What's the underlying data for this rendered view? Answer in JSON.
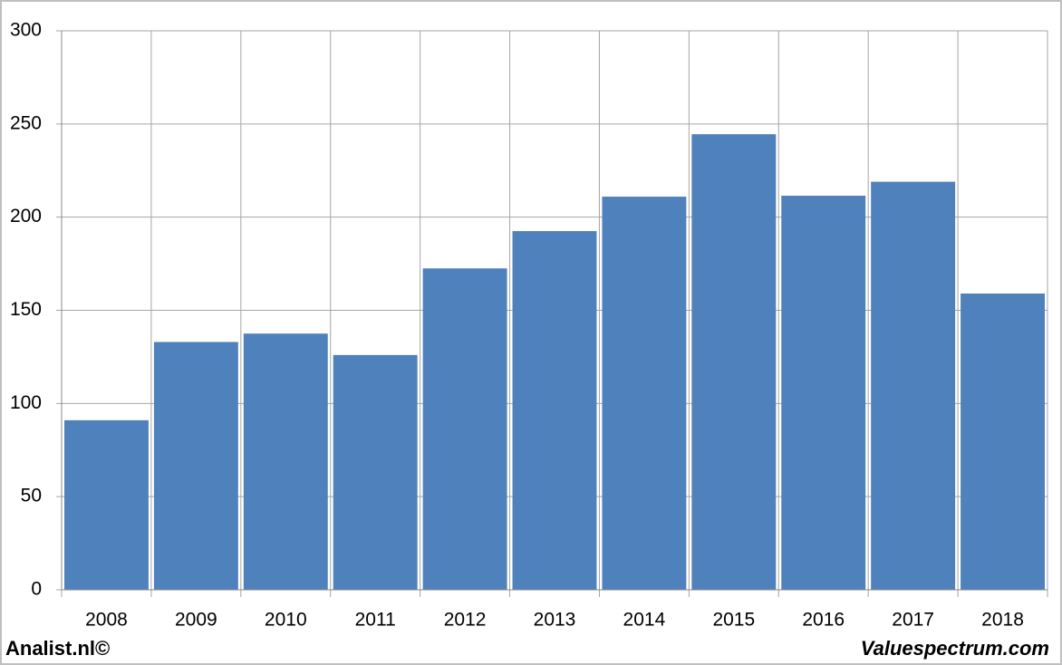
{
  "chart_data": {
    "type": "bar",
    "categories": [
      "2008",
      "2009",
      "2010",
      "2011",
      "2012",
      "2013",
      "2014",
      "2015",
      "2016",
      "2017",
      "2018"
    ],
    "values": [
      91,
      133,
      137.5,
      126,
      172.5,
      192.5,
      211,
      244.5,
      211.5,
      219,
      159
    ],
    "color": "#4f81bd",
    "ylim": [
      0,
      300
    ],
    "yticks": [
      0,
      50,
      100,
      150,
      200,
      250,
      300
    ],
    "grid": true,
    "source_left": "Analist.nl©",
    "source_right": "Valuespectrum.com"
  }
}
